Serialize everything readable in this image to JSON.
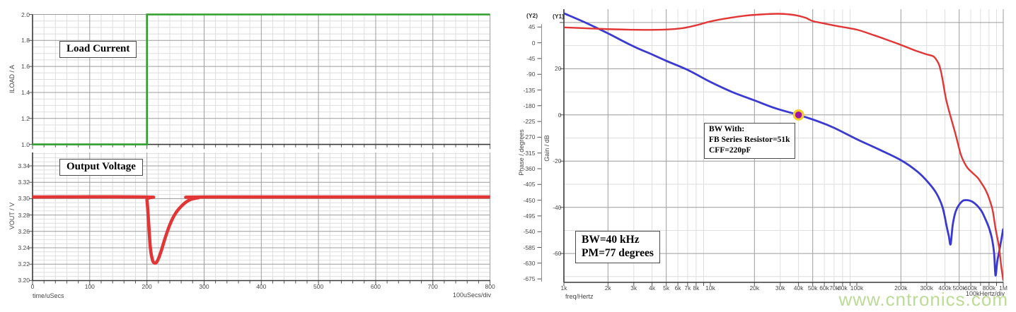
{
  "watermark": {
    "text": "www.cntronics.com",
    "color": "#b7d98e"
  },
  "chart_data": [
    {
      "id": "load-current",
      "type": "line",
      "title": "Load Current",
      "ylabel": "ILOAD / A",
      "ylim": [
        1.0,
        2.0
      ],
      "yticks": [
        "2.0",
        "1.8",
        "1.6",
        "1.4",
        "1.2",
        "1.0"
      ],
      "ytick_values": [
        2.0,
        1.8,
        1.6,
        1.4,
        1.2,
        1.0
      ],
      "xlim": [
        0,
        800
      ],
      "grid": "on",
      "series": [
        {
          "name": "ILOAD",
          "color": "#2f9e2f",
          "points": [
            [
              0,
              1.0
            ],
            [
              200,
              1.0
            ],
            [
              200,
              2.0
            ],
            [
              800,
              2.0
            ]
          ]
        }
      ]
    },
    {
      "id": "output-voltage",
      "type": "line",
      "title": "Output Voltage",
      "ylabel": "VOUT / V",
      "xlabel": "time/uSecs",
      "xdiv_label": "100uSecs/div",
      "ylim": [
        3.2,
        3.356
      ],
      "yticks": [
        "3.34",
        "3.32",
        "3.30",
        "3.28",
        "3.26",
        "3.24",
        "3.22",
        "3.20"
      ],
      "ytick_values": [
        3.34,
        3.32,
        3.3,
        3.28,
        3.26,
        3.24,
        3.22,
        3.2
      ],
      "xlim": [
        0,
        800
      ],
      "xticks": [
        "0",
        "100",
        "200",
        "300",
        "400",
        "500",
        "600",
        "700",
        "800"
      ],
      "xtick_values": [
        0,
        100,
        200,
        300,
        400,
        500,
        600,
        700,
        800
      ],
      "grid": "on",
      "series": [
        {
          "name": "VOUT",
          "color": "#e23636",
          "smooth": true,
          "points": [
            [
              0,
              3.302
            ],
            [
              196,
              3.302
            ],
            [
              200,
              3.298
            ],
            [
              203,
              3.27
            ],
            [
              206,
              3.24
            ],
            [
              210,
              3.2245
            ],
            [
              214,
              3.2212
            ],
            [
              218,
              3.2235
            ],
            [
              224,
              3.234
            ],
            [
              231,
              3.25
            ],
            [
              240,
              3.268
            ],
            [
              250,
              3.282
            ],
            [
              262,
              3.292
            ],
            [
              275,
              3.2985
            ],
            [
              290,
              3.301
            ],
            [
              310,
              3.302
            ],
            [
              800,
              3.302
            ]
          ]
        }
      ]
    },
    {
      "id": "bode",
      "type": "line",
      "xscale": "log",
      "xlabel": "freq/Hertz",
      "xdiv_label": "100kHertz/div",
      "xlim": [
        1000,
        1000000
      ],
      "xticks": [
        {
          "f": 1000,
          "label": "1k"
        },
        {
          "f": 2000,
          "label": "2k"
        },
        {
          "f": 3000,
          "label": "3k"
        },
        {
          "f": 4000,
          "label": "4k"
        },
        {
          "f": 5000,
          "label": "5k"
        },
        {
          "f": 6000,
          "label": "6k"
        },
        {
          "f": 7000,
          "label": "7k"
        },
        {
          "f": 8000,
          "label": "8k"
        },
        {
          "f": 10000,
          "label": "10k"
        },
        {
          "f": 20000,
          "label": "20k"
        },
        {
          "f": 30000,
          "label": "30k"
        },
        {
          "f": 40000,
          "label": "40k"
        },
        {
          "f": 50000,
          "label": "50k"
        },
        {
          "f": 60000,
          "label": "60k"
        },
        {
          "f": 70000,
          "label": "70k"
        },
        {
          "f": 80000,
          "label": "80k"
        },
        {
          "f": 100000,
          "label": "100k"
        },
        {
          "f": 200000,
          "label": "200k"
        },
        {
          "f": 300000,
          "label": "300k"
        },
        {
          "f": 400000,
          "label": "400k"
        },
        {
          "f": 500000,
          "label": "500k"
        },
        {
          "f": 600000,
          "label": "600k"
        },
        {
          "f": 800000,
          "label": "800k"
        },
        {
          "f": 1000000,
          "label": "1M"
        }
      ],
      "y1": {
        "tag": "(Y1)",
        "label": "Gain / dB",
        "ticks": [
          "20",
          "0",
          "-20",
          "-40",
          "-60"
        ],
        "tick_values": [
          20,
          0,
          -20,
          -40,
          -60
        ]
      },
      "y2": {
        "tag": "(Y2)",
        "label": "Phase / degrees",
        "ticks": [
          "45",
          "0",
          "-45",
          "-90",
          "-135",
          "-180",
          "-225",
          "-270",
          "-315",
          "-360",
          "-405",
          "-450",
          "-495",
          "-540",
          "-585",
          "-630",
          "-675"
        ],
        "tick_values": [
          45,
          0,
          -45,
          -90,
          -135,
          -180,
          -225,
          -270,
          -315,
          -360,
          -405,
          -450,
          -495,
          -540,
          -585,
          -630,
          -675
        ]
      },
      "series": [
        {
          "name": "Gain",
          "axis": "y1",
          "color": "#3a3ad2",
          "smooth": true,
          "points": [
            [
              1000,
              44
            ],
            [
              1400,
              40
            ],
            [
              2000,
              35.3
            ],
            [
              3000,
              29.6
            ],
            [
              4000,
              26.2
            ],
            [
              5000,
              23.4
            ],
            [
              7000,
              19.5
            ],
            [
              10000,
              14.3
            ],
            [
              14000,
              10.0
            ],
            [
              20000,
              6.3
            ],
            [
              28000,
              2.8
            ],
            [
              40000,
              0
            ],
            [
              55000,
              -2.9
            ],
            [
              70000,
              -5.6
            ],
            [
              100000,
              -10.5
            ],
            [
              140000,
              -14.8
            ],
            [
              200000,
              -19.6
            ],
            [
              260000,
              -24.6
            ],
            [
              310000,
              -29.5
            ],
            [
              350000,
              -34
            ],
            [
              385000,
              -40
            ],
            [
              413000,
              -49
            ],
            [
              425000,
              -52.5
            ],
            [
              437000,
              -56
            ],
            [
              452000,
              -47.5
            ],
            [
              475000,
              -41.5
            ],
            [
              520000,
              -37.6
            ],
            [
              560000,
              -36.9
            ],
            [
              620000,
              -37.7
            ],
            [
              700000,
              -41
            ],
            [
              754000,
              -45
            ],
            [
              800000,
              -49
            ],
            [
              837000,
              -53.5
            ],
            [
              866000,
              -60
            ],
            [
              885000,
              -69.5
            ],
            [
              910000,
              -63.5
            ],
            [
              945000,
              -58
            ],
            [
              1000000,
              -49.2
            ]
          ]
        },
        {
          "name": "Phase",
          "axis": "y2",
          "color": "#e23636",
          "smooth": true,
          "points": [
            [
              1000,
              44
            ],
            [
              1500,
              41
            ],
            [
              2200,
              38.5
            ],
            [
              3500,
              37
            ],
            [
              5000,
              38
            ],
            [
              6500,
              42
            ],
            [
              8000,
              50
            ],
            [
              10000,
              61
            ],
            [
              13000,
              70
            ],
            [
              17000,
              77
            ],
            [
              22000,
              81
            ],
            [
              29000,
              83
            ],
            [
              35000,
              81
            ],
            [
              40000,
              77
            ],
            [
              45000,
              71
            ],
            [
              50000,
              62
            ],
            [
              60000,
              55
            ],
            [
              73000,
              48
            ],
            [
              100000,
              37.5
            ],
            [
              130000,
              22
            ],
            [
              155000,
              11
            ],
            [
              200000,
              -6
            ],
            [
              250000,
              -22
            ],
            [
              300000,
              -33
            ],
            [
              336000,
              -40
            ],
            [
              360000,
              -58
            ],
            [
              372000,
              -75
            ],
            [
              385000,
              -105
            ],
            [
              406000,
              -160
            ],
            [
              434000,
              -207
            ],
            [
              470000,
              -258
            ],
            [
              512000,
              -318
            ],
            [
              541000,
              -342
            ],
            [
              571000,
              -358
            ],
            [
              617000,
              -372
            ],
            [
              669000,
              -386
            ],
            [
              714000,
              -403
            ],
            [
              754000,
              -419
            ],
            [
              798000,
              -443
            ],
            [
              846000,
              -479
            ],
            [
              885000,
              -530
            ],
            [
              935000,
              -584
            ],
            [
              968000,
              -638
            ],
            [
              1000000,
              -680
            ]
          ]
        }
      ],
      "marker": {
        "freq": 40000,
        "gain_db": 0,
        "fill": "#9e169e",
        "ring": "#f6cd2b"
      },
      "annotations": [
        {
          "id": "bw-with",
          "lines": [
            "BW With:",
            "FB Series Resistor=51k",
            "CFF=220pF"
          ]
        },
        {
          "id": "bw-pm",
          "lines": [
            "BW=40 kHz",
            "PM=77 degrees"
          ]
        }
      ]
    }
  ]
}
